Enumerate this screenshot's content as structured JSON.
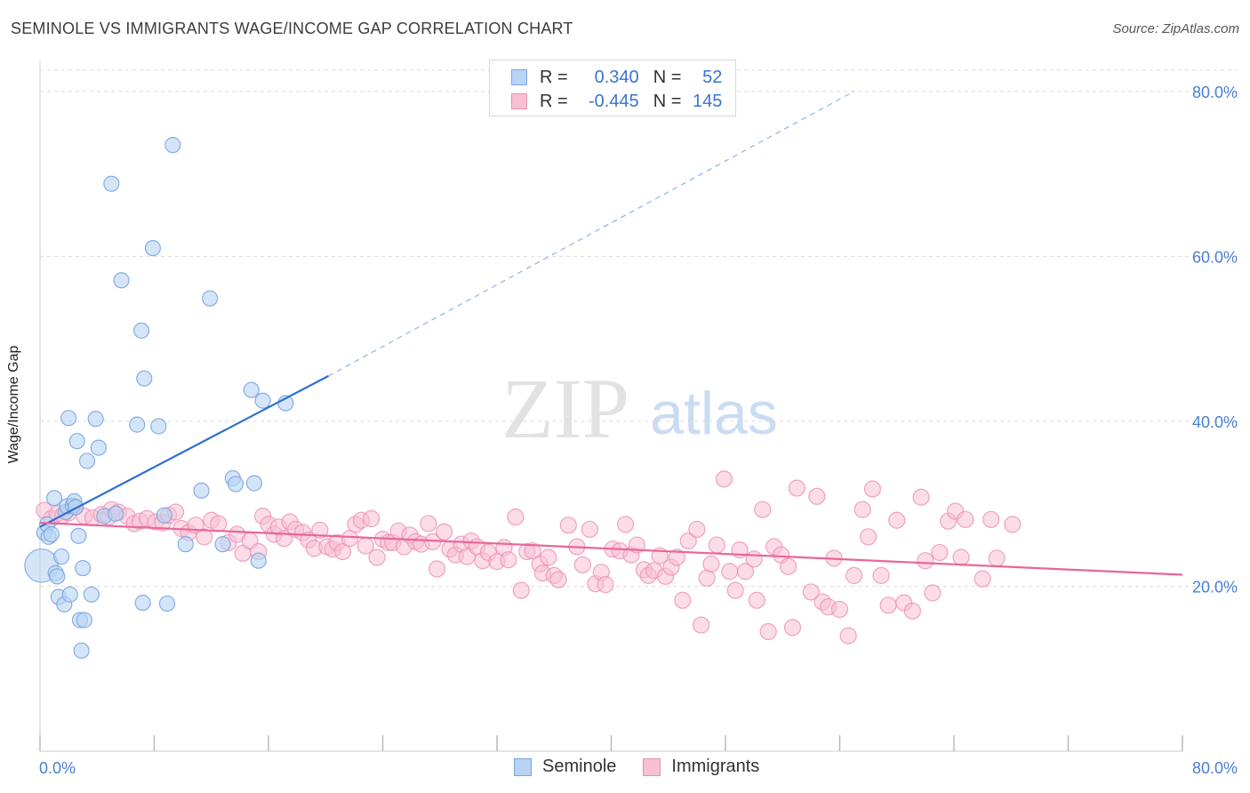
{
  "header": {
    "title": "SEMINOLE VS IMMIGRANTS WAGE/INCOME GAP CORRELATION CHART",
    "source": "Source: ZipAtlas.com"
  },
  "watermark": {
    "zip": "ZIP",
    "atlas": "atlas"
  },
  "colors": {
    "seminole_fill": "#b8d3f4",
    "seminole_stroke": "#7aa6e0",
    "seminole_line": "#2f6fd0",
    "immigrants_fill": "#f7c0d3",
    "immigrants_stroke": "#ec8fb0",
    "immigrants_line": "#e8669a",
    "tick_text": "#4a7fd4",
    "grid": "#dcdcdc"
  },
  "legend": {
    "rows": [
      {
        "r_label": "R =",
        "r_value": "0.340",
        "n_label": "N =",
        "n_value": "52"
      },
      {
        "r_label": "R =",
        "r_value": "-0.445",
        "n_label": "N =",
        "n_value": "145"
      }
    ]
  },
  "bottom_legend": {
    "items": [
      "Seminole",
      "Immigrants"
    ]
  },
  "chart_data": {
    "type": "scatter",
    "title": "SEMINOLE VS IMMIGRANTS WAGE/INCOME GAP CORRELATION CHART",
    "xlabel": "",
    "ylabel": "Wage/Income Gap",
    "xlim": [
      0,
      80
    ],
    "ylim": [
      0,
      83
    ],
    "x_tick_labels": [
      "0.0%",
      "80.0%"
    ],
    "y_ticks": [
      20,
      40,
      60,
      80
    ],
    "y_tick_labels": [
      "20.0%",
      "40.0%",
      "60.0%",
      "80.0%"
    ],
    "grid": true,
    "legend_position": "top-center",
    "series": [
      {
        "name": "Seminole",
        "r": 0.34,
        "n": 52,
        "trend": {
          "x0": 0,
          "y0": 27.2,
          "x1": 20.2,
          "y1": 45.5,
          "dashed_to_x": 57,
          "dashed_to_y": 80
        },
        "points": [
          [
            0.1,
            22.5,
            2.2
          ],
          [
            0.3,
            26.5,
            1
          ],
          [
            0.5,
            27.5,
            1
          ],
          [
            0.6,
            26.0,
            1
          ],
          [
            0.8,
            26.3,
            1
          ],
          [
            1.0,
            30.7,
            1
          ],
          [
            1.1,
            21.6,
            1
          ],
          [
            1.2,
            21.2,
            1
          ],
          [
            1.3,
            18.7,
            1
          ],
          [
            1.5,
            23.6,
            1
          ],
          [
            1.7,
            17.8,
            1
          ],
          [
            1.8,
            29.0,
            1
          ],
          [
            1.9,
            29.7,
            1
          ],
          [
            2.0,
            40.4,
            1
          ],
          [
            2.1,
            19.0,
            1
          ],
          [
            2.3,
            29.8,
            1
          ],
          [
            2.4,
            30.3,
            1
          ],
          [
            2.5,
            29.6,
            1
          ],
          [
            2.6,
            37.6,
            1
          ],
          [
            2.7,
            26.1,
            1
          ],
          [
            2.8,
            15.9,
            1
          ],
          [
            2.9,
            12.2,
            1
          ],
          [
            3.0,
            22.2,
            1
          ],
          [
            3.1,
            15.9,
            1
          ],
          [
            3.3,
            35.2,
            1
          ],
          [
            3.6,
            19.0,
            1
          ],
          [
            3.9,
            40.3,
            1
          ],
          [
            4.1,
            36.8,
            1
          ],
          [
            4.5,
            28.5,
            1
          ],
          [
            5.0,
            68.8,
            1
          ],
          [
            5.3,
            28.8,
            1
          ],
          [
            5.7,
            57.1,
            1
          ],
          [
            6.8,
            39.6,
            1
          ],
          [
            7.1,
            51.0,
            1
          ],
          [
            7.2,
            18.0,
            1
          ],
          [
            7.3,
            45.2,
            1
          ],
          [
            7.9,
            61.0,
            1
          ],
          [
            8.3,
            39.4,
            1
          ],
          [
            8.7,
            28.6,
            1
          ],
          [
            8.9,
            17.9,
            1
          ],
          [
            9.3,
            73.5,
            1
          ],
          [
            10.2,
            25.1,
            1
          ],
          [
            11.3,
            31.6,
            1
          ],
          [
            11.9,
            54.9,
            1
          ],
          [
            12.8,
            25.1,
            1
          ],
          [
            13.5,
            33.1,
            1
          ],
          [
            13.7,
            32.4,
            1
          ],
          [
            14.8,
            43.8,
            1
          ],
          [
            15.0,
            32.5,
            1
          ],
          [
            15.3,
            23.1,
            1
          ],
          [
            15.6,
            42.5,
            1
          ],
          [
            17.2,
            42.2,
            1
          ]
        ]
      },
      {
        "name": "Immigrants",
        "r": -0.445,
        "n": 145,
        "trend": {
          "x0": 0,
          "y0": 27.7,
          "x1": 80,
          "y1": 21.4
        },
        "points": [
          [
            0.3,
            29.2
          ],
          [
            0.8,
            28.2
          ],
          [
            1.2,
            28.8
          ],
          [
            1.6,
            28.6
          ],
          [
            2.0,
            28.9
          ],
          [
            2.4,
            29.6
          ],
          [
            3.1,
            28.5
          ],
          [
            3.7,
            28.3
          ],
          [
            4.3,
            28.7
          ],
          [
            4.8,
            28.4
          ],
          [
            5.0,
            29.3
          ],
          [
            5.5,
            29.0
          ],
          [
            6.1,
            28.5
          ],
          [
            6.6,
            27.6
          ],
          [
            7.0,
            27.9
          ],
          [
            7.5,
            28.2
          ],
          [
            8.1,
            27.8
          ],
          [
            8.6,
            27.7
          ],
          [
            9.0,
            28.6
          ],
          [
            9.5,
            29.0
          ],
          [
            9.9,
            27.0
          ],
          [
            10.4,
            26.5
          ],
          [
            10.9,
            27.4
          ],
          [
            11.5,
            26.0
          ],
          [
            12.0,
            28.0
          ],
          [
            12.5,
            27.6
          ],
          [
            13.2,
            25.3
          ],
          [
            13.8,
            26.3
          ],
          [
            14.2,
            24.0
          ],
          [
            14.7,
            25.5
          ],
          [
            15.3,
            24.2
          ],
          [
            15.6,
            28.5
          ],
          [
            16.0,
            27.5
          ],
          [
            16.4,
            26.3
          ],
          [
            16.7,
            27.2
          ],
          [
            17.1,
            25.8
          ],
          [
            17.5,
            27.8
          ],
          [
            17.9,
            26.9
          ],
          [
            18.4,
            26.5
          ],
          [
            18.8,
            25.6
          ],
          [
            19.2,
            24.6
          ],
          [
            19.6,
            26.8
          ],
          [
            20.1,
            24.8
          ],
          [
            20.5,
            24.5
          ],
          [
            20.8,
            25.3
          ],
          [
            21.2,
            24.2
          ],
          [
            21.7,
            25.8
          ],
          [
            22.1,
            27.5
          ],
          [
            22.5,
            28.0
          ],
          [
            22.8,
            24.9
          ],
          [
            23.2,
            28.2
          ],
          [
            23.6,
            23.5
          ],
          [
            24.0,
            25.7
          ],
          [
            24.4,
            25.3
          ],
          [
            24.7,
            25.3
          ],
          [
            25.1,
            26.7
          ],
          [
            25.5,
            24.8
          ],
          [
            25.9,
            26.2
          ],
          [
            26.3,
            25.4
          ],
          [
            26.7,
            25.1
          ],
          [
            27.2,
            27.6
          ],
          [
            27.5,
            25.4
          ],
          [
            27.8,
            22.1
          ],
          [
            28.3,
            26.6
          ],
          [
            28.7,
            24.5
          ],
          [
            29.1,
            23.8
          ],
          [
            29.5,
            25.1
          ],
          [
            29.9,
            23.6
          ],
          [
            30.2,
            25.5
          ],
          [
            30.6,
            24.8
          ],
          [
            31.0,
            23.1
          ],
          [
            31.4,
            24.1
          ],
          [
            32.0,
            23.0
          ],
          [
            32.5,
            24.7
          ],
          [
            32.8,
            23.2
          ],
          [
            33.3,
            28.4
          ],
          [
            33.7,
            19.5
          ],
          [
            34.1,
            24.2
          ],
          [
            34.5,
            24.3
          ],
          [
            35.0,
            22.7
          ],
          [
            35.2,
            21.6
          ],
          [
            35.6,
            23.5
          ],
          [
            36.0,
            21.3
          ],
          [
            36.3,
            20.8
          ],
          [
            37.0,
            27.4
          ],
          [
            37.6,
            24.8
          ],
          [
            38.0,
            22.6
          ],
          [
            38.5,
            26.9
          ],
          [
            38.9,
            20.3
          ],
          [
            39.3,
            21.7
          ],
          [
            39.6,
            20.2
          ],
          [
            40.1,
            24.5
          ],
          [
            40.6,
            24.3
          ],
          [
            41.0,
            27.5
          ],
          [
            41.4,
            23.8
          ],
          [
            41.8,
            25.0
          ],
          [
            42.3,
            22.0
          ],
          [
            42.6,
            21.3
          ],
          [
            43.0,
            21.9
          ],
          [
            43.4,
            23.7
          ],
          [
            43.8,
            21.2
          ],
          [
            44.2,
            22.3
          ],
          [
            44.6,
            23.5
          ],
          [
            45.0,
            18.3
          ],
          [
            45.4,
            25.5
          ],
          [
            46.0,
            26.9
          ],
          [
            46.3,
            15.3
          ],
          [
            46.7,
            21.0
          ],
          [
            47.0,
            22.7
          ],
          [
            47.4,
            25.0
          ],
          [
            47.9,
            33.0
          ],
          [
            48.3,
            21.8
          ],
          [
            48.7,
            19.5
          ],
          [
            49.0,
            24.4
          ],
          [
            49.4,
            21.8
          ],
          [
            50.0,
            23.3
          ],
          [
            50.2,
            18.3
          ],
          [
            50.6,
            29.3
          ],
          [
            51.0,
            14.5
          ],
          [
            51.4,
            24.8
          ],
          [
            51.9,
            23.8
          ],
          [
            52.4,
            22.4
          ],
          [
            52.7,
            15.0
          ],
          [
            53.0,
            31.9
          ],
          [
            54.0,
            19.3
          ],
          [
            54.4,
            30.9
          ],
          [
            54.8,
            18.1
          ],
          [
            55.2,
            17.5
          ],
          [
            55.6,
            23.4
          ],
          [
            56.0,
            17.2
          ],
          [
            56.6,
            14.0
          ],
          [
            57.0,
            21.3
          ],
          [
            57.6,
            29.3
          ],
          [
            58.0,
            26.0
          ],
          [
            58.3,
            31.8
          ],
          [
            58.9,
            21.3
          ],
          [
            59.4,
            17.7
          ],
          [
            60.0,
            28.0
          ],
          [
            60.5,
            18.0
          ],
          [
            61.1,
            17.0
          ],
          [
            61.7,
            30.8
          ],
          [
            62.0,
            23.1
          ],
          [
            62.5,
            19.2
          ],
          [
            63.0,
            24.1
          ],
          [
            63.6,
            27.9
          ],
          [
            64.1,
            29.1
          ],
          [
            64.5,
            23.5
          ],
          [
            64.8,
            28.1
          ],
          [
            66.0,
            20.9
          ],
          [
            66.6,
            28.1
          ],
          [
            67.0,
            23.4
          ],
          [
            68.1,
            27.5
          ]
        ]
      }
    ]
  }
}
